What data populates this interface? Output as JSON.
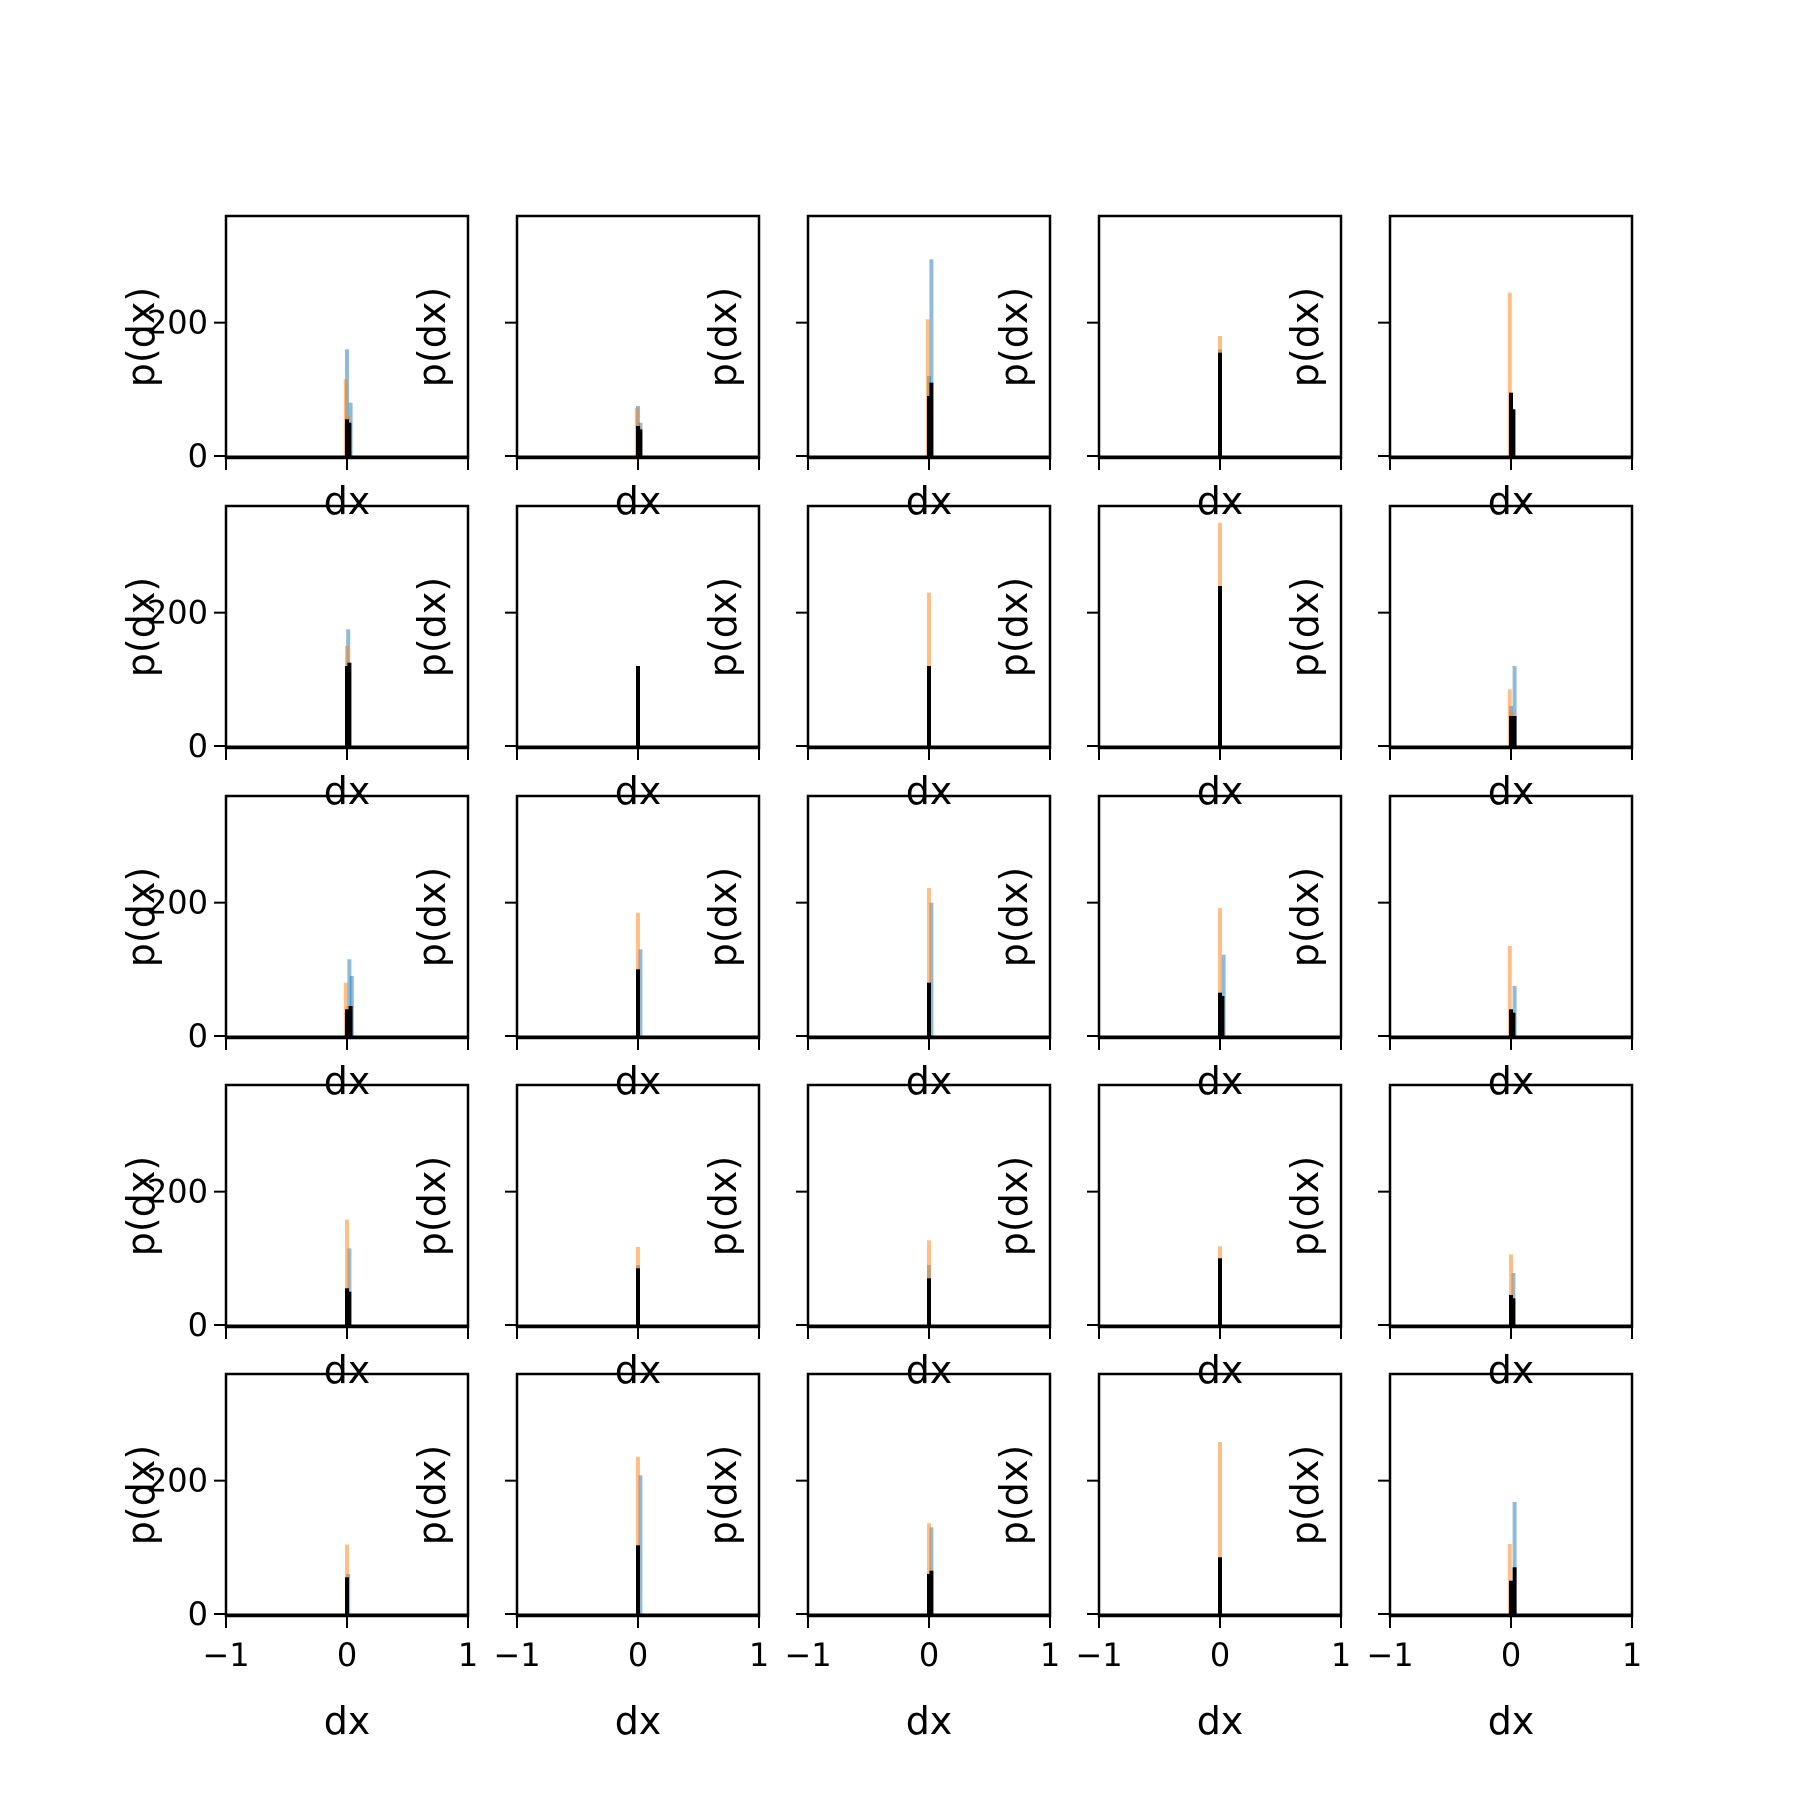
{
  "chart_data": {
    "type": "histogram-grid",
    "rows": 5,
    "cols": 5,
    "xlim": [
      -1,
      1
    ],
    "ylim": [
      0,
      360
    ],
    "xticks": [
      -1,
      0,
      1
    ],
    "yticks": [
      0,
      200
    ],
    "xtick_labels": [
      "−1",
      "0",
      "1"
    ],
    "ytick_labels": [
      "0",
      "200"
    ],
    "xlabel": "dx",
    "ylabel": "p(dx)",
    "grid": false,
    "series_colors": {
      "blue": "#1f77b4",
      "orange": "#ff7f0e",
      "black": "#000000"
    },
    "panels": [
      {
        "row": 1,
        "col": 1,
        "peaks": {
          "blue": [
            {
              "x": 0.0,
              "y": 160
            },
            {
              "x": 0.03,
              "y": 80
            }
          ],
          "orange": [
            {
              "x": -0.01,
              "y": 115
            },
            {
              "x": 0.01,
              "y": 60
            }
          ],
          "black": [
            {
              "x": 0.0,
              "y": 55
            },
            {
              "x": 0.02,
              "y": 50
            }
          ]
        }
      },
      {
        "row": 1,
        "col": 2,
        "peaks": {
          "blue": [
            {
              "x": 0.0,
              "y": 75
            },
            {
              "x": 0.02,
              "y": 50
            }
          ],
          "orange": [
            {
              "x": -0.01,
              "y": 72
            },
            {
              "x": 0.01,
              "y": 45
            }
          ],
          "black": [
            {
              "x": 0.0,
              "y": 45
            },
            {
              "x": 0.02,
              "y": 40
            }
          ]
        }
      },
      {
        "row": 1,
        "col": 3,
        "peaks": {
          "blue": [
            {
              "x": 0.02,
              "y": 295
            },
            {
              "x": 0.0,
              "y": 120
            }
          ],
          "orange": [
            {
              "x": -0.01,
              "y": 205
            },
            {
              "x": 0.01,
              "y": 60
            }
          ],
          "black": [
            {
              "x": 0.0,
              "y": 90
            },
            {
              "x": 0.02,
              "y": 110
            }
          ]
        }
      },
      {
        "row": 1,
        "col": 4,
        "peaks": {
          "blue": [
            {
              "x": 0.0,
              "y": 160
            }
          ],
          "orange": [
            {
              "x": 0.0,
              "y": 180
            }
          ],
          "black": [
            {
              "x": 0.0,
              "y": 155
            }
          ]
        }
      },
      {
        "row": 1,
        "col": 5,
        "peaks": {
          "blue": [
            {
              "x": 0.0,
              "y": 80
            }
          ],
          "orange": [
            {
              "x": -0.01,
              "y": 245
            }
          ],
          "black": [
            {
              "x": 0.0,
              "y": 95
            },
            {
              "x": 0.02,
              "y": 70
            }
          ]
        }
      },
      {
        "row": 2,
        "col": 1,
        "peaks": {
          "blue": [
            {
              "x": 0.01,
              "y": 175
            }
          ],
          "orange": [
            {
              "x": 0.0,
              "y": 150
            }
          ],
          "black": [
            {
              "x": 0.0,
              "y": 120
            },
            {
              "x": 0.02,
              "y": 125
            }
          ]
        }
      },
      {
        "row": 2,
        "col": 2,
        "peaks": {
          "blue": [
            {
              "x": 0.0,
              "y": 115
            }
          ],
          "orange": [
            {
              "x": 0.0,
              "y": 100
            }
          ],
          "black": [
            {
              "x": 0.0,
              "y": 120
            }
          ]
        }
      },
      {
        "row": 2,
        "col": 3,
        "peaks": {
          "blue": [
            {
              "x": 0.0,
              "y": 110
            }
          ],
          "orange": [
            {
              "x": 0.0,
              "y": 230
            }
          ],
          "black": [
            {
              "x": 0.0,
              "y": 120
            }
          ]
        }
      },
      {
        "row": 2,
        "col": 4,
        "peaks": {
          "blue": [
            {
              "x": 0.0,
              "y": 230
            }
          ],
          "orange": [
            {
              "x": 0.0,
              "y": 335
            }
          ],
          "black": [
            {
              "x": 0.0,
              "y": 240
            }
          ]
        }
      },
      {
        "row": 2,
        "col": 5,
        "peaks": {
          "blue": [
            {
              "x": 0.03,
              "y": 120
            },
            {
              "x": 0.0,
              "y": 60
            }
          ],
          "orange": [
            {
              "x": -0.01,
              "y": 85
            },
            {
              "x": 0.01,
              "y": 50
            }
          ],
          "black": [
            {
              "x": 0.0,
              "y": 45
            },
            {
              "x": 0.03,
              "y": 45
            }
          ]
        }
      },
      {
        "row": 3,
        "col": 1,
        "peaks": {
          "blue": [
            {
              "x": 0.02,
              "y": 115
            },
            {
              "x": 0.04,
              "y": 90
            }
          ],
          "orange": [
            {
              "x": -0.01,
              "y": 80
            },
            {
              "x": 0.01,
              "y": 45
            }
          ],
          "black": [
            {
              "x": 0.0,
              "y": 40
            },
            {
              "x": 0.03,
              "y": 45
            }
          ]
        }
      },
      {
        "row": 3,
        "col": 2,
        "peaks": {
          "blue": [
            {
              "x": 0.02,
              "y": 130
            }
          ],
          "orange": [
            {
              "x": 0.0,
              "y": 185
            }
          ],
          "black": [
            {
              "x": 0.0,
              "y": 100
            }
          ]
        }
      },
      {
        "row": 3,
        "col": 3,
        "peaks": {
          "blue": [
            {
              "x": 0.02,
              "y": 200
            }
          ],
          "orange": [
            {
              "x": 0.0,
              "y": 222
            }
          ],
          "black": [
            {
              "x": 0.0,
              "y": 80
            }
          ]
        }
      },
      {
        "row": 3,
        "col": 4,
        "peaks": {
          "blue": [
            {
              "x": 0.03,
              "y": 122
            }
          ],
          "orange": [
            {
              "x": 0.0,
              "y": 192
            }
          ],
          "black": [
            {
              "x": 0.0,
              "y": 65
            },
            {
              "x": 0.02,
              "y": 60
            }
          ]
        }
      },
      {
        "row": 3,
        "col": 5,
        "peaks": {
          "blue": [
            {
              "x": 0.03,
              "y": 75
            }
          ],
          "orange": [
            {
              "x": -0.01,
              "y": 135
            }
          ],
          "black": [
            {
              "x": 0.0,
              "y": 40
            },
            {
              "x": 0.02,
              "y": 35
            }
          ]
        }
      },
      {
        "row": 4,
        "col": 1,
        "peaks": {
          "blue": [
            {
              "x": 0.02,
              "y": 115
            }
          ],
          "orange": [
            {
              "x": 0.0,
              "y": 158
            }
          ],
          "black": [
            {
              "x": 0.0,
              "y": 55
            },
            {
              "x": 0.02,
              "y": 50
            }
          ]
        }
      },
      {
        "row": 4,
        "col": 2,
        "peaks": {
          "blue": [
            {
              "x": 0.0,
              "y": 90
            }
          ],
          "orange": [
            {
              "x": 0.0,
              "y": 117
            }
          ],
          "black": [
            {
              "x": 0.0,
              "y": 85
            }
          ]
        }
      },
      {
        "row": 4,
        "col": 3,
        "peaks": {
          "blue": [
            {
              "x": 0.0,
              "y": 90
            }
          ],
          "orange": [
            {
              "x": 0.0,
              "y": 127
            }
          ],
          "black": [
            {
              "x": 0.0,
              "y": 70
            }
          ]
        }
      },
      {
        "row": 4,
        "col": 4,
        "peaks": {
          "blue": [
            {
              "x": 0.0,
              "y": 80
            }
          ],
          "orange": [
            {
              "x": 0.0,
              "y": 118
            }
          ],
          "black": [
            {
              "x": 0.0,
              "y": 100
            }
          ]
        }
      },
      {
        "row": 4,
        "col": 5,
        "peaks": {
          "blue": [
            {
              "x": 0.02,
              "y": 78
            }
          ],
          "orange": [
            {
              "x": 0.0,
              "y": 106
            }
          ],
          "black": [
            {
              "x": 0.0,
              "y": 45
            },
            {
              "x": 0.02,
              "y": 40
            }
          ]
        }
      },
      {
        "row": 5,
        "col": 1,
        "peaks": {
          "blue": [
            {
              "x": 0.01,
              "y": 60
            }
          ],
          "orange": [
            {
              "x": 0.0,
              "y": 104
            }
          ],
          "black": [
            {
              "x": 0.0,
              "y": 55
            }
          ]
        }
      },
      {
        "row": 5,
        "col": 2,
        "peaks": {
          "blue": [
            {
              "x": 0.02,
              "y": 208
            }
          ],
          "orange": [
            {
              "x": 0.0,
              "y": 236
            }
          ],
          "black": [
            {
              "x": 0.0,
              "y": 103
            }
          ]
        }
      },
      {
        "row": 5,
        "col": 3,
        "peaks": {
          "blue": [
            {
              "x": 0.02,
              "y": 130
            }
          ],
          "orange": [
            {
              "x": 0.0,
              "y": 136
            }
          ],
          "black": [
            {
              "x": 0.0,
              "y": 60
            },
            {
              "x": 0.02,
              "y": 65
            }
          ]
        }
      },
      {
        "row": 5,
        "col": 4,
        "peaks": {
          "blue": [
            {
              "x": 0.0,
              "y": 80
            }
          ],
          "orange": [
            {
              "x": 0.0,
              "y": 258
            }
          ],
          "black": [
            {
              "x": 0.0,
              "y": 85
            }
          ]
        }
      },
      {
        "row": 5,
        "col": 5,
        "peaks": {
          "blue": [
            {
              "x": 0.03,
              "y": 168
            }
          ],
          "orange": [
            {
              "x": -0.01,
              "y": 105
            }
          ],
          "black": [
            {
              "x": 0.0,
              "y": 50
            },
            {
              "x": 0.03,
              "y": 70
            }
          ]
        }
      }
    ]
  }
}
